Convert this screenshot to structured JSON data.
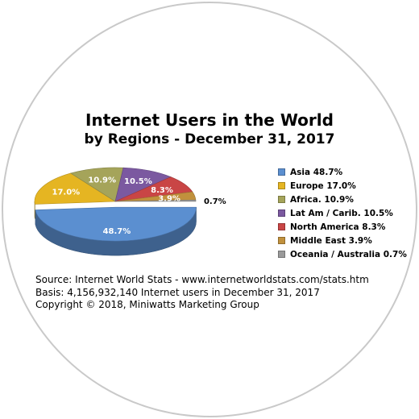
{
  "chart_data": {
    "type": "pie",
    "title": "Internet Users in the World",
    "subtitle": "by Regions - December 31, 2017",
    "legend_position": "right",
    "categories": [
      "Asia",
      "Europe",
      "Africa.",
      "Lat Am / Carib.",
      "North America",
      "Middle East",
      "Oceania / Australia"
    ],
    "values": [
      48.7,
      17.0,
      10.9,
      10.5,
      8.3,
      3.9,
      0.7
    ],
    "slice_labels": [
      "48.7%",
      "17.0%",
      "10.9%",
      "10.5%",
      "8.3%",
      "3.9%",
      "0.7%"
    ],
    "legend_entries": [
      "Asia  48.7%",
      "Europe  17.0%",
      "Africa.  10.9%",
      "Lat Am / Carib.  10.5%",
      "North America  8.3%",
      "Middle East  3.9%",
      "Oceania / Australia  0.7%"
    ],
    "colors": [
      "#5b8fd0",
      "#e5b522",
      "#a5a45a",
      "#7b59a0",
      "#c94545",
      "#c1913d",
      "#9a9a9a"
    ],
    "exploded_category": "Asia"
  },
  "footer": {
    "source": "Source: Internet World Stats -  www.internetworldstats.com/stats.htm",
    "basis": "Basis: 4,156,932,140 Internet users in December 31, 2017",
    "copyright": "Copyright © 2018, Miniwatts Marketing Group"
  },
  "colors": {
    "frame_border": "#c9c9c9",
    "label_text": "#ffffff",
    "outside_label_text": "#000000"
  }
}
